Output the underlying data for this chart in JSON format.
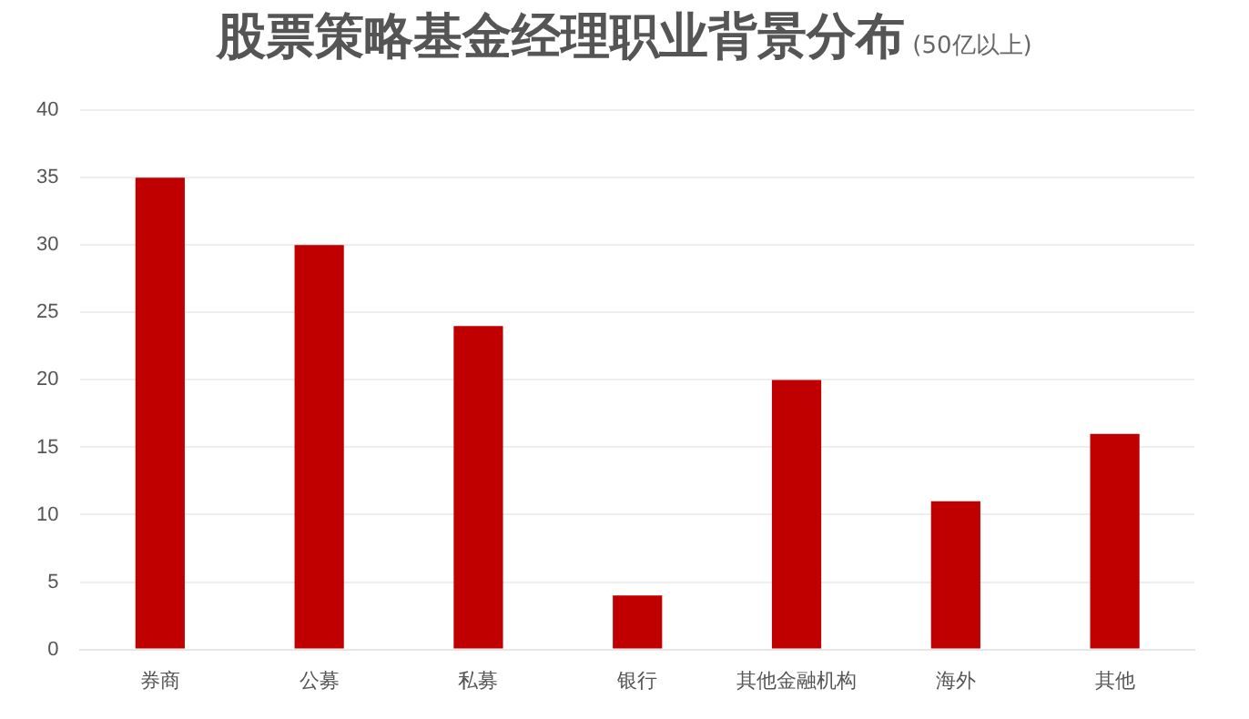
{
  "chart_data": {
    "type": "bar",
    "title": "股票策略基金经理职业背景分布",
    "subtitle": "(50亿以上)",
    "categories": [
      "券商",
      "公募",
      "私募",
      "银行",
      "其他金融机构",
      "海外",
      "其他"
    ],
    "values": [
      35,
      30,
      24,
      4,
      20,
      11,
      16
    ],
    "color": "#c00000",
    "ylim": [
      0,
      40
    ],
    "yticks": [
      0,
      5,
      10,
      15,
      20,
      25,
      30,
      35,
      40
    ],
    "grid": "y",
    "legend": false
  }
}
